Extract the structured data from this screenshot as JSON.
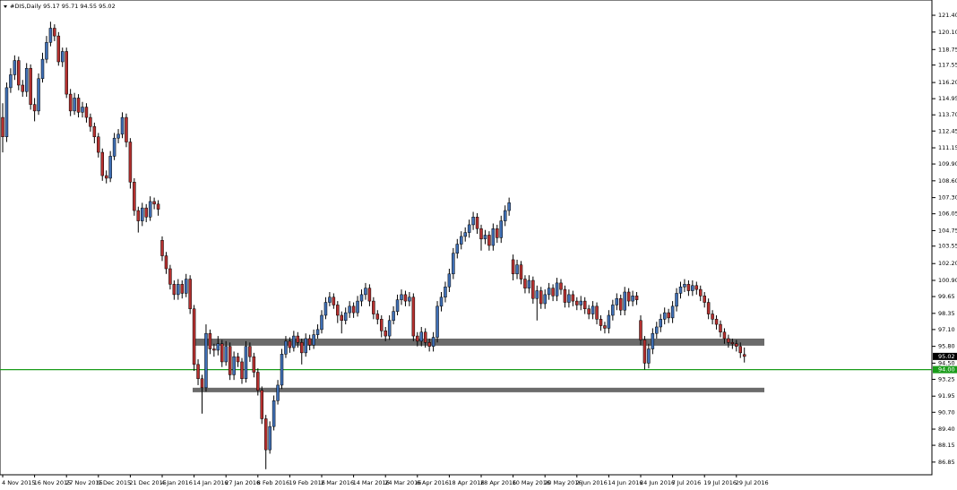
{
  "chart_data": {
    "type": "candlestick",
    "title": "#DIS,Daily  95.17 95.71 94.55 95.02",
    "categories": [
      "4 Nov 2015",
      null,
      null,
      null,
      null,
      null,
      null,
      null,
      "16 Nov 2015",
      null,
      null,
      null,
      null,
      null,
      null,
      null,
      "27 Nov 2015",
      null,
      null,
      null,
      null,
      null,
      null,
      null,
      "9 Dec 2015",
      null,
      null,
      null,
      null,
      null,
      null,
      null,
      "21 Dec 2015",
      null,
      null,
      null,
      null,
      null,
      null,
      null,
      "4 Jan 2016",
      null,
      null,
      null,
      null,
      null,
      null,
      null,
      "14 Jan 2016",
      null,
      null,
      null,
      null,
      null,
      null,
      null,
      "27 Jan 2016",
      null,
      null,
      null,
      null,
      null,
      null,
      null,
      "8 Feb 2016",
      null,
      null,
      null,
      null,
      null,
      null,
      null,
      "19 Feb 2016",
      null,
      null,
      null,
      null,
      null,
      null,
      null,
      "2 Mar 2016",
      null,
      null,
      null,
      null,
      null,
      null,
      null,
      "14 Mar 2016",
      null,
      null,
      null,
      null,
      null,
      null,
      null,
      "24 Mar 2016",
      null,
      null,
      null,
      null,
      null,
      null,
      null,
      "6 Apr 2016",
      null,
      null,
      null,
      null,
      null,
      null,
      null,
      "18 Apr 2016",
      null,
      null,
      null,
      null,
      null,
      null,
      null,
      "28 Apr 2016",
      null,
      null,
      null,
      null,
      null,
      null,
      null,
      "10 May 2016",
      null,
      null,
      null,
      null,
      null,
      null,
      null,
      "20 May 2016",
      null,
      null,
      null,
      null,
      null,
      null,
      null,
      "2 Jun 2016",
      null,
      null,
      null,
      null,
      null,
      null,
      null,
      "14 Jun 2016",
      null,
      null,
      null,
      null,
      null,
      null,
      null,
      "24 Jun 2016",
      null,
      null,
      null,
      null,
      null,
      null,
      null,
      "7 Jul 2016",
      null,
      null,
      null,
      null,
      null,
      null,
      null,
      "19 Jul 2016",
      null,
      null,
      null,
      null,
      null,
      null,
      null,
      "29 Jul 2016",
      null,
      null
    ],
    "open": [
      113.5,
      112.0,
      115.8,
      116.8,
      117.9,
      116.0,
      115.5,
      117.3,
      114.5,
      114.0,
      116.5,
      118.0,
      119.3,
      120.4,
      119.8,
      117.8,
      118.6,
      115.3,
      114.0,
      115.0,
      113.9,
      114.3,
      113.5,
      112.8,
      112.0,
      110.8,
      109.0,
      108.8,
      110.5,
      111.9,
      112.2,
      113.5,
      111.6,
      108.5,
      106.3,
      105.5,
      106.5,
      105.8,
      107.0,
      106.8,
      104.0,
      102.8,
      101.8,
      100.6,
      99.8,
      100.6,
      99.9,
      101.0,
      98.7,
      94.4,
      93.3,
      92.6,
      96.8,
      95.6,
      95.5,
      96.0,
      94.6,
      95.8,
      93.6,
      95.0,
      94.6,
      93.3,
      95.8,
      95.0,
      93.8,
      92.4,
      90.2,
      87.8,
      89.6,
      91.6,
      92.8,
      95.2,
      96.2,
      95.7,
      96.6,
      96.1,
      95.3,
      96.4,
      95.9,
      96.7,
      97.1,
      98.2,
      99.2,
      99.6,
      99.0,
      98.2,
      97.8,
      98.4,
      98.9,
      98.4,
      99.3,
      99.8,
      100.3,
      99.3,
      98.3,
      97.9,
      97.0,
      96.6,
      97.8,
      98.5,
      99.4,
      99.8,
      99.3,
      99.6,
      96.6,
      96.2,
      96.9,
      96.1,
      95.8,
      96.5,
      98.9,
      99.6,
      100.4,
      101.4,
      103.0,
      103.7,
      104.3,
      104.6,
      105.2,
      105.8,
      104.9,
      104.1,
      104.4,
      103.6,
      104.9,
      104.2,
      105.5,
      106.3,
      102.5,
      101.4,
      102.1,
      101.0,
      100.3,
      100.9,
      99.5,
      100.1,
      99.1,
      99.8,
      100.3,
      99.7,
      100.7,
      100.2,
      99.2,
      99.8,
      99.3,
      99.0,
      99.3,
      98.7,
      98.3,
      98.9,
      97.9,
      97.4,
      97.2,
      98.2,
      99.0,
      99.5,
      98.6,
      100.0,
      99.3,
      99.7,
      97.8,
      96.3,
      94.5,
      95.6,
      96.8,
      97.3,
      97.9,
      98.4,
      98.0,
      98.9,
      99.9,
      100.4,
      100.6,
      100.1,
      100.5,
      100.2,
      99.7,
      99.2,
      98.3,
      97.9,
      97.5,
      96.9,
      96.4,
      96.1,
      96.0,
      95.8,
      95.17
    ],
    "high": [
      114.6,
      116.2,
      117.3,
      118.3,
      118.2,
      116.4,
      117.7,
      117.6,
      115.0,
      116.9,
      118.5,
      119.8,
      120.9,
      120.7,
      120.1,
      118.9,
      118.9,
      115.7,
      115.4,
      115.3,
      114.7,
      114.6,
      113.8,
      113.1,
      112.3,
      111.1,
      109.4,
      110.9,
      112.3,
      112.6,
      113.9,
      113.8,
      111.9,
      108.8,
      106.6,
      106.9,
      106.8,
      107.4,
      107.3,
      107.1,
      104.3,
      103.1,
      102.1,
      100.9,
      101.0,
      100.9,
      101.4,
      101.3,
      99.0,
      94.8,
      93.6,
      97.5,
      97.1,
      96.0,
      96.6,
      96.3,
      96.2,
      96.1,
      95.4,
      95.3,
      94.9,
      96.2,
      96.1,
      95.3,
      94.1,
      92.7,
      90.5,
      90.0,
      92.0,
      93.2,
      95.6,
      96.6,
      96.5,
      97.0,
      96.9,
      96.4,
      96.8,
      96.7,
      97.1,
      97.5,
      98.6,
      99.6,
      100.0,
      99.9,
      99.3,
      98.5,
      98.8,
      99.3,
      99.2,
      99.7,
      100.2,
      100.7,
      100.6,
      99.6,
      98.6,
      98.2,
      97.3,
      98.2,
      98.9,
      99.8,
      100.2,
      100.1,
      100.0,
      99.9,
      96.9,
      97.3,
      97.2,
      96.4,
      96.9,
      99.3,
      100.0,
      100.8,
      101.8,
      103.4,
      104.1,
      104.7,
      105.0,
      105.6,
      106.2,
      106.1,
      105.2,
      104.8,
      104.7,
      105.3,
      105.2,
      105.9,
      106.7,
      107.3,
      102.9,
      102.5,
      102.4,
      101.3,
      101.3,
      101.2,
      100.5,
      100.4,
      100.2,
      100.7,
      100.6,
      101.1,
      101.0,
      100.5,
      100.2,
      100.1,
      99.6,
      99.7,
      99.6,
      99.0,
      99.3,
      99.2,
      98.2,
      97.7,
      98.6,
      99.4,
      99.9,
      99.8,
      100.4,
      100.3,
      100.1,
      100.0,
      98.2,
      96.6,
      96.0,
      97.2,
      97.7,
      98.3,
      98.8,
      98.7,
      99.3,
      100.3,
      100.8,
      101.0,
      100.9,
      100.9,
      100.8,
      100.5,
      100.0,
      99.5,
      98.6,
      98.2,
      97.8,
      97.2,
      96.7,
      96.4,
      96.3,
      96.1,
      95.71
    ],
    "low": [
      110.8,
      111.6,
      115.4,
      116.4,
      115.6,
      115.1,
      115.1,
      114.1,
      113.2,
      113.7,
      116.2,
      117.7,
      119.0,
      119.4,
      117.5,
      117.4,
      115.0,
      113.6,
      113.7,
      113.5,
      113.5,
      113.1,
      112.4,
      111.5,
      110.4,
      108.6,
      108.4,
      108.5,
      110.2,
      111.5,
      111.9,
      111.2,
      108.0,
      105.9,
      104.6,
      105.1,
      105.4,
      105.5,
      106.4,
      105.9,
      102.4,
      101.4,
      100.2,
      99.4,
      99.4,
      99.5,
      99.6,
      98.3,
      93.9,
      92.8,
      90.6,
      92.3,
      95.2,
      95.0,
      95.1,
      94.2,
      94.3,
      93.2,
      93.2,
      94.2,
      92.9,
      93.0,
      94.6,
      93.4,
      92.0,
      89.8,
      86.3,
      87.5,
      89.3,
      91.3,
      92.5,
      94.9,
      95.3,
      95.4,
      95.7,
      94.4,
      95.0,
      95.5,
      95.6,
      96.4,
      96.8,
      97.9,
      98.9,
      98.7,
      97.6,
      96.8,
      97.5,
      98.0,
      98.0,
      98.1,
      98.9,
      99.4,
      98.9,
      97.9,
      97.5,
      96.5,
      96.2,
      96.3,
      97.5,
      98.2,
      99.0,
      98.9,
      98.9,
      96.2,
      95.8,
      95.8,
      95.7,
      95.4,
      95.4,
      96.1,
      98.5,
      99.2,
      100.0,
      101.0,
      102.6,
      103.3,
      103.9,
      104.2,
      104.8,
      104.5,
      103.2,
      103.7,
      103.2,
      103.2,
      103.8,
      103.8,
      105.1,
      105.9,
      100.9,
      101.0,
      100.6,
      99.9,
      99.9,
      99.1,
      97.8,
      98.7,
      98.7,
      99.4,
      99.3,
      99.3,
      99.8,
      98.8,
      98.8,
      98.9,
      98.6,
      98.6,
      98.3,
      97.9,
      97.9,
      97.5,
      97.0,
      96.8,
      96.8,
      97.8,
      98.6,
      98.2,
      98.2,
      98.9,
      98.9,
      99.0,
      95.9,
      94.0,
      94.1,
      95.2,
      96.4,
      96.9,
      97.5,
      97.6,
      97.6,
      98.5,
      99.5,
      100.0,
      99.7,
      99.7,
      99.8,
      99.3,
      98.8,
      97.9,
      97.5,
      97.1,
      96.5,
      96.0,
      95.7,
      95.6,
      95.4,
      94.9,
      94.55
    ],
    "close": [
      112.0,
      115.8,
      116.8,
      117.9,
      116.0,
      115.5,
      117.3,
      114.5,
      114.0,
      116.5,
      118.0,
      119.3,
      120.4,
      119.8,
      117.8,
      118.6,
      115.3,
      114.0,
      115.0,
      113.9,
      114.3,
      113.5,
      112.8,
      112.0,
      110.8,
      109.0,
      108.8,
      110.5,
      111.9,
      112.2,
      113.5,
      111.6,
      108.5,
      106.3,
      105.5,
      106.5,
      105.8,
      107.0,
      106.8,
      106.4,
      102.8,
      101.8,
      100.6,
      99.8,
      100.6,
      99.9,
      101.0,
      98.7,
      94.4,
      93.3,
      92.6,
      96.8,
      95.6,
      95.5,
      96.0,
      94.6,
      95.8,
      93.6,
      95.0,
      94.6,
      93.3,
      95.8,
      95.0,
      93.8,
      92.4,
      90.2,
      87.8,
      89.6,
      91.6,
      92.8,
      95.2,
      96.2,
      95.7,
      96.6,
      96.1,
      95.3,
      96.4,
      95.9,
      96.7,
      97.1,
      98.2,
      99.2,
      99.6,
      99.0,
      98.2,
      97.8,
      98.4,
      98.9,
      98.4,
      99.3,
      99.8,
      100.3,
      99.3,
      98.3,
      97.9,
      97.0,
      96.6,
      97.8,
      98.5,
      99.4,
      99.8,
      99.3,
      99.6,
      96.6,
      96.2,
      96.9,
      96.1,
      95.8,
      96.5,
      98.9,
      99.6,
      100.4,
      101.4,
      103.0,
      103.7,
      104.3,
      104.6,
      105.2,
      105.8,
      104.9,
      104.1,
      104.4,
      103.6,
      104.9,
      104.2,
      105.5,
      106.3,
      106.9,
      101.4,
      102.1,
      101.0,
      100.3,
      100.9,
      99.5,
      100.1,
      99.1,
      99.8,
      100.3,
      99.7,
      100.7,
      100.2,
      99.2,
      99.8,
      99.3,
      99.0,
      99.3,
      98.7,
      98.3,
      98.9,
      97.9,
      97.4,
      97.2,
      98.2,
      99.0,
      99.5,
      98.6,
      100.0,
      99.3,
      99.7,
      99.4,
      96.3,
      94.5,
      95.6,
      96.8,
      97.3,
      97.9,
      98.4,
      98.0,
      98.9,
      99.9,
      100.4,
      100.6,
      100.1,
      100.5,
      100.2,
      99.7,
      99.2,
      98.3,
      97.9,
      97.5,
      96.9,
      96.4,
      96.1,
      96.0,
      95.8,
      95.3,
      95.02
    ],
    "up_color": "#3f6fb5",
    "down_color": "#b5302f",
    "ylim": [
      85.87,
      122.58
    ],
    "yticks": [
      {
        "value": 121.4,
        "label": "121.40"
      },
      {
        "value": 120.1,
        "label": "120.10"
      },
      {
        "value": 118.75,
        "label": "118.75"
      },
      {
        "value": 117.55,
        "label": "117.55"
      },
      {
        "value": 116.2,
        "label": "116.20"
      },
      {
        "value": 114.95,
        "label": "114.95"
      },
      {
        "value": 113.7,
        "label": "113.70"
      },
      {
        "value": 112.45,
        "label": "112.45"
      },
      {
        "value": 111.15,
        "label": "111.15"
      },
      {
        "value": 109.9,
        "label": "109.90"
      },
      {
        "value": 108.6,
        "label": "108.60"
      },
      {
        "value": 107.3,
        "label": "107.30"
      },
      {
        "value": 106.05,
        "label": "106.05"
      },
      {
        "value": 104.75,
        "label": "104.75"
      },
      {
        "value": 103.55,
        "label": "103.55"
      },
      {
        "value": 102.2,
        "label": "102.20"
      },
      {
        "value": 100.9,
        "label": "100.90"
      },
      {
        "value": 99.65,
        "label": "99.65"
      },
      {
        "value": 98.35,
        "label": "98.35"
      },
      {
        "value": 97.1,
        "label": "97.10"
      },
      {
        "value": 95.8,
        "label": "95.80"
      },
      {
        "value": 94.5,
        "label": "94.50"
      },
      {
        "value": 93.25,
        "label": "93.25"
      },
      {
        "value": 91.95,
        "label": "91.95"
      },
      {
        "value": 90.7,
        "label": "90.70"
      },
      {
        "value": 89.4,
        "label": "89.40"
      },
      {
        "value": 88.15,
        "label": "88.15"
      },
      {
        "value": 86.85,
        "label": "86.85"
      }
    ],
    "zones": [
      {
        "low": 95.85,
        "high": 96.4
      },
      {
        "low": 92.25,
        "high": 92.6
      }
    ],
    "zone_color": "#6b6b6b",
    "hline": {
      "value": 94,
      "label": "94.00",
      "color": "#1a9c1a"
    },
    "last_price": 95.02
  }
}
